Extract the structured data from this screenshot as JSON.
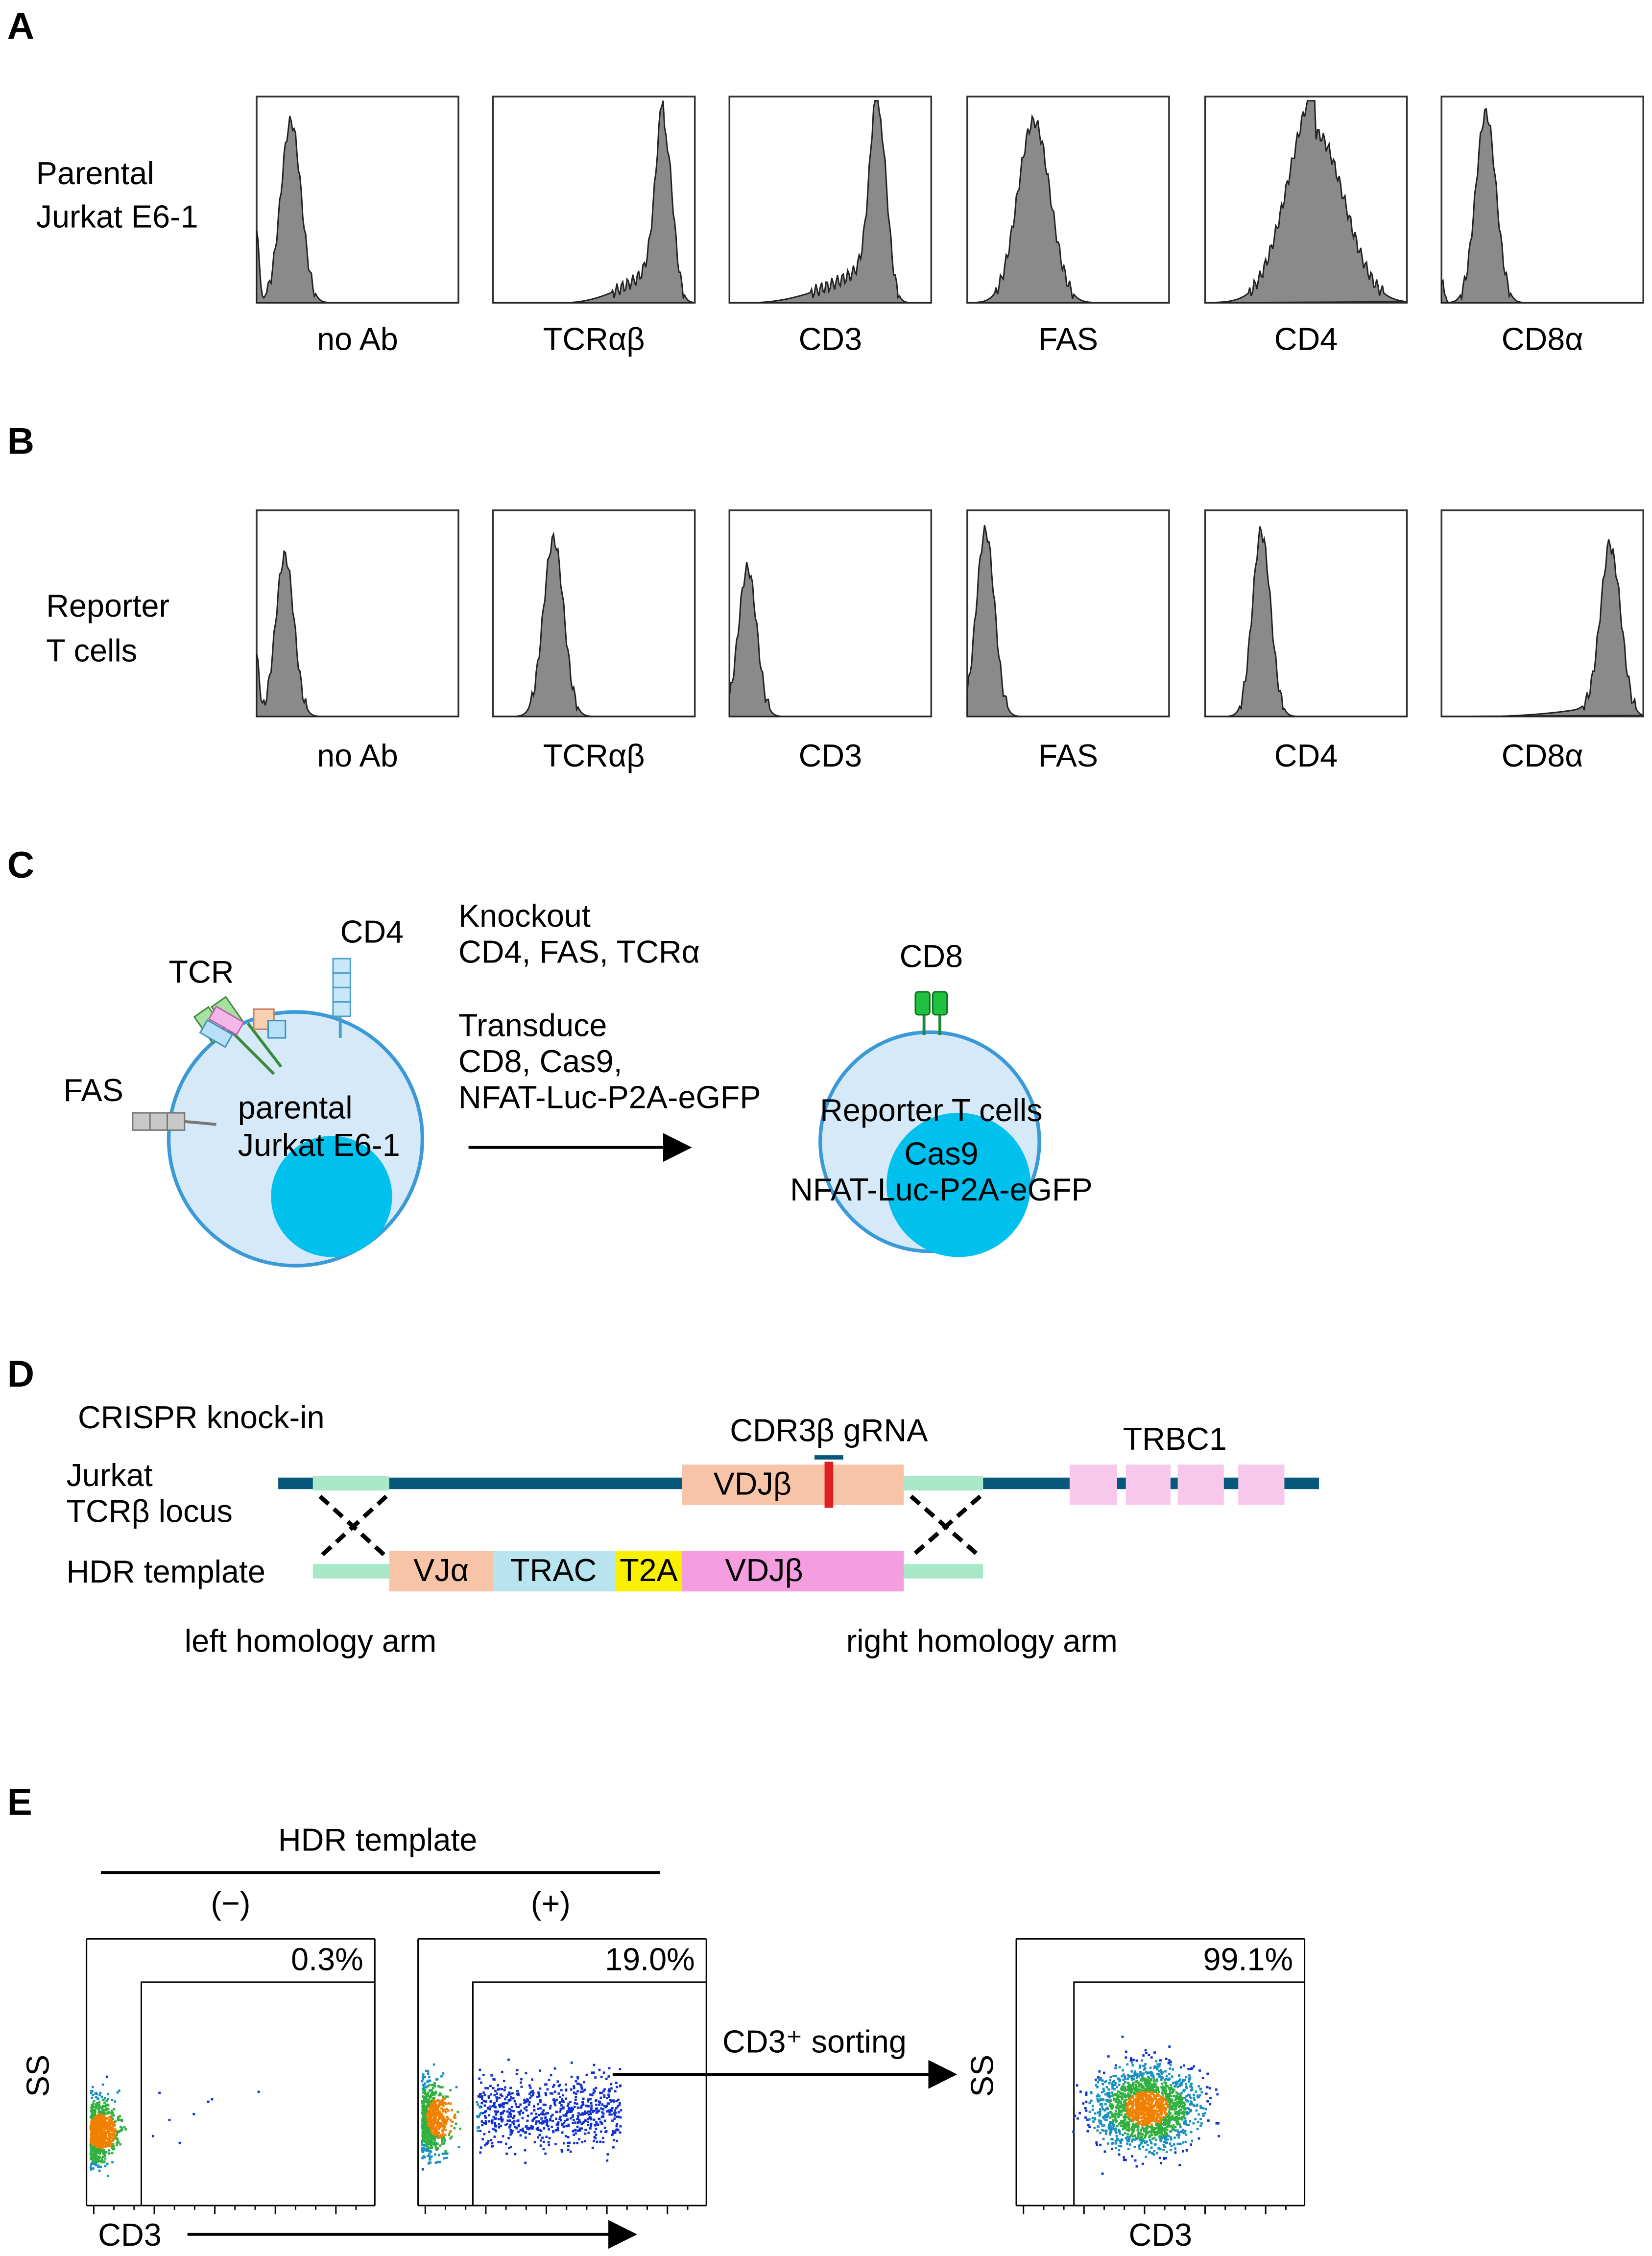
{
  "panels": {
    "A": {
      "letter": "A",
      "row_label": [
        "Parental",
        "Jurkat E6-1"
      ],
      "markers": [
        "no Ab",
        "TCRαβ",
        "CD3",
        "FAS",
        "CD4",
        "CD8α"
      ]
    },
    "B": {
      "letter": "B",
      "row_label": [
        "Reporter",
        "T cells"
      ],
      "markers": [
        "no Ab",
        "TCRαβ",
        "CD3",
        "FAS",
        "CD4",
        "CD8α"
      ]
    },
    "C": {
      "letter": "C",
      "left_cell": {
        "label": [
          "parental",
          "Jurkat E6-1"
        ],
        "receptors": [
          "TCR",
          "CD4",
          "FAS"
        ]
      },
      "steps": [
        "Knockout",
        "CD4, FAS, TCRα",
        "Transduce",
        "CD8, Cas9,",
        "NFAT-Luc-P2A-eGFP"
      ],
      "right_cell": {
        "label": "Reporter T cells",
        "receptor": "CD8",
        "nucleus": [
          "Cas9",
          "NFAT-Luc-P2A-eGFP"
        ]
      }
    },
    "D": {
      "letter": "D",
      "title": "CRISPR knock-in",
      "locus_label": [
        "Jurkat",
        "TCRβ locus"
      ],
      "template_label": "HDR template",
      "grna": "CDR3β gRNA",
      "locus_segment": "VDJβ",
      "constant": "TRBC1",
      "template_segments": [
        "VJα",
        "TRAC",
        "T2A",
        "VDJβ"
      ],
      "arms": [
        "left homology arm",
        "right homology arm"
      ]
    },
    "E": {
      "letter": "E",
      "title": "HDR template",
      "conditions": [
        "(−)",
        "(+)"
      ],
      "gates": [
        "0.3%",
        "19.0%",
        "99.1%"
      ],
      "x_label": "CD3",
      "y_label": "SS",
      "sorting": "CD3⁺ sorting"
    }
  }
}
